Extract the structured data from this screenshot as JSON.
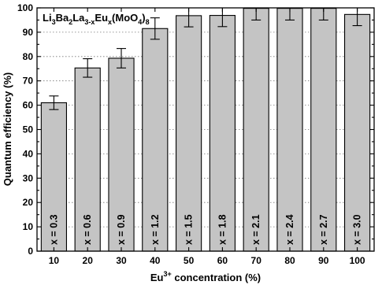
{
  "chart_data": {
    "type": "bar",
    "categories": [
      "10",
      "20",
      "30",
      "40",
      "50",
      "60",
      "70",
      "80",
      "90",
      "100"
    ],
    "series": [
      {
        "values": [
          61,
          75.3,
          79.3,
          91.5,
          96.8,
          96.9,
          99.8,
          99.8,
          99.8,
          97.3
        ],
        "errors": [
          2.8,
          3.8,
          4.0,
          4.4,
          4.6,
          4.6,
          4.8,
          4.8,
          4.8,
          4.6
        ],
        "bar_labels": [
          "x = 0.3",
          "x = 0.6",
          "x = 0.9",
          "x = 1.2",
          "x = 1.5",
          "x = 1.8",
          "x = 2.1",
          "x = 2.4",
          "x = 2.7",
          "x = 3.0"
        ]
      }
    ],
    "annotation": {
      "parts": [
        {
          "text": "Li",
          "sub": false
        },
        {
          "text": "3",
          "sub": true
        },
        {
          "text": "Ba",
          "sub": false
        },
        {
          "text": "2",
          "sub": true
        },
        {
          "text": "La",
          "sub": false
        },
        {
          "text": "3-x",
          "sub": true
        },
        {
          "text": "Eu",
          "sub": false
        },
        {
          "text": "x",
          "sub": true
        },
        {
          "text": "(MoO",
          "sub": false
        },
        {
          "text": "4",
          "sub": true
        },
        {
          "text": ")",
          "sub": false
        },
        {
          "text": "8",
          "sub": true
        }
      ]
    },
    "xlabel": {
      "prefix": "Eu",
      "sup": "3+",
      "suffix": " concentration (%)"
    },
    "ylabel": "Quantum efficiency (%)",
    "ylim": [
      0,
      100
    ],
    "yticks": [
      0,
      10,
      20,
      30,
      40,
      50,
      60,
      70,
      80,
      90,
      100
    ],
    "grid": "horizontal-dotted",
    "colors": {
      "bar_fill": "#c4c4c4",
      "bar_stroke": "#000000"
    }
  }
}
